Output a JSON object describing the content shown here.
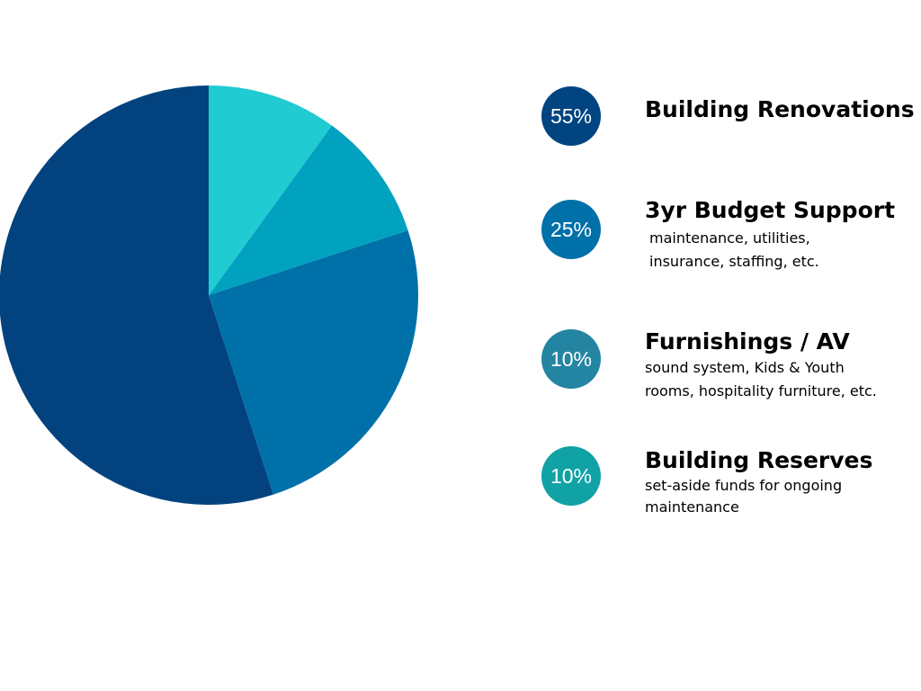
{
  "chart_data": {
    "type": "pie",
    "slices": [
      {
        "label": "Building Renovations",
        "value": 55,
        "color": "#02437F"
      },
      {
        "label": "3yr Budget Support",
        "value": 25,
        "color": "#0070A8"
      },
      {
        "label": "Furnishings / AV",
        "value": 10,
        "color": "#00A2C0"
      },
      {
        "label": "Building Reserves",
        "value": 10,
        "color": "#21CBD2"
      }
    ]
  },
  "legend": [
    {
      "badge": "55%",
      "title": "Building Renovations",
      "desc": "",
      "color": "#004481"
    },
    {
      "badge": "25%",
      "title": "3yr Budget Support",
      "desc": "maintenance, utilities,\ninsurance, staffing, etc.",
      "color": "#0070A8"
    },
    {
      "badge": "10%",
      "title": "Furnishings / AV",
      "desc": "sound system, Kids & Youth\nrooms, hospitality furniture, etc.",
      "color": "#2385A2"
    },
    {
      "badge": "10%",
      "title": "Building Reserves",
      "desc": "set-aside funds for ongoing\nmaintenance",
      "color": "#11A2A6"
    }
  ]
}
